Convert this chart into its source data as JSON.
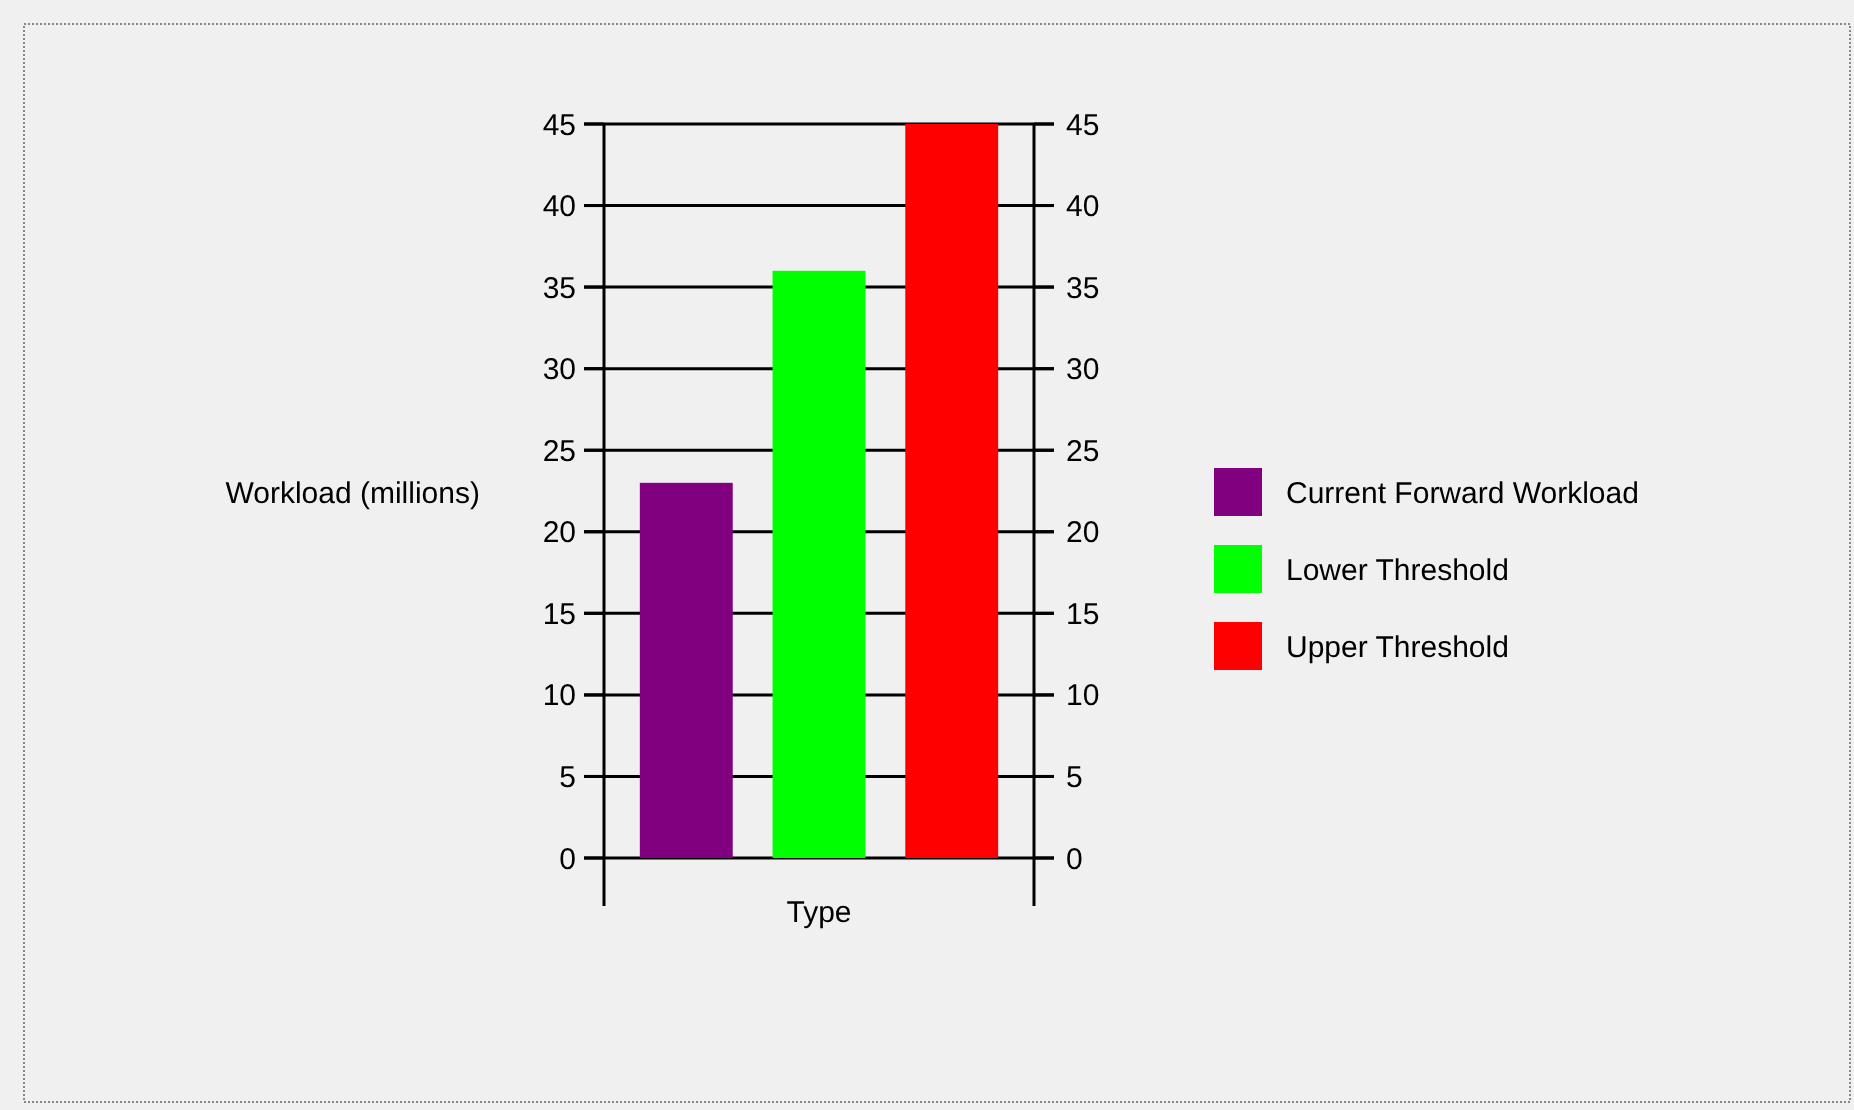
{
  "chart_data": {
    "type": "bar",
    "xlabel": "Type",
    "ylabel": "Workload (millions)",
    "categories": [
      null
    ],
    "series": [
      {
        "name": "Current Forward Workload",
        "color": "#800080",
        "values": [
          23
        ]
      },
      {
        "name": "Lower Threshold",
        "color": "#00ff00",
        "values": [
          36
        ]
      },
      {
        "name": "Upper Threshold",
        "color": "#ff0000",
        "values": [
          45
        ]
      }
    ],
    "ylim": [
      0,
      45
    ],
    "yticks": [
      0,
      5,
      10,
      15,
      20,
      25,
      30,
      35,
      40,
      45
    ],
    "y2lim": [
      0,
      45
    ],
    "y2ticks": [
      0,
      5,
      10,
      15,
      20,
      25,
      30,
      35,
      40,
      45
    ],
    "grid": "y",
    "legend": "right"
  }
}
